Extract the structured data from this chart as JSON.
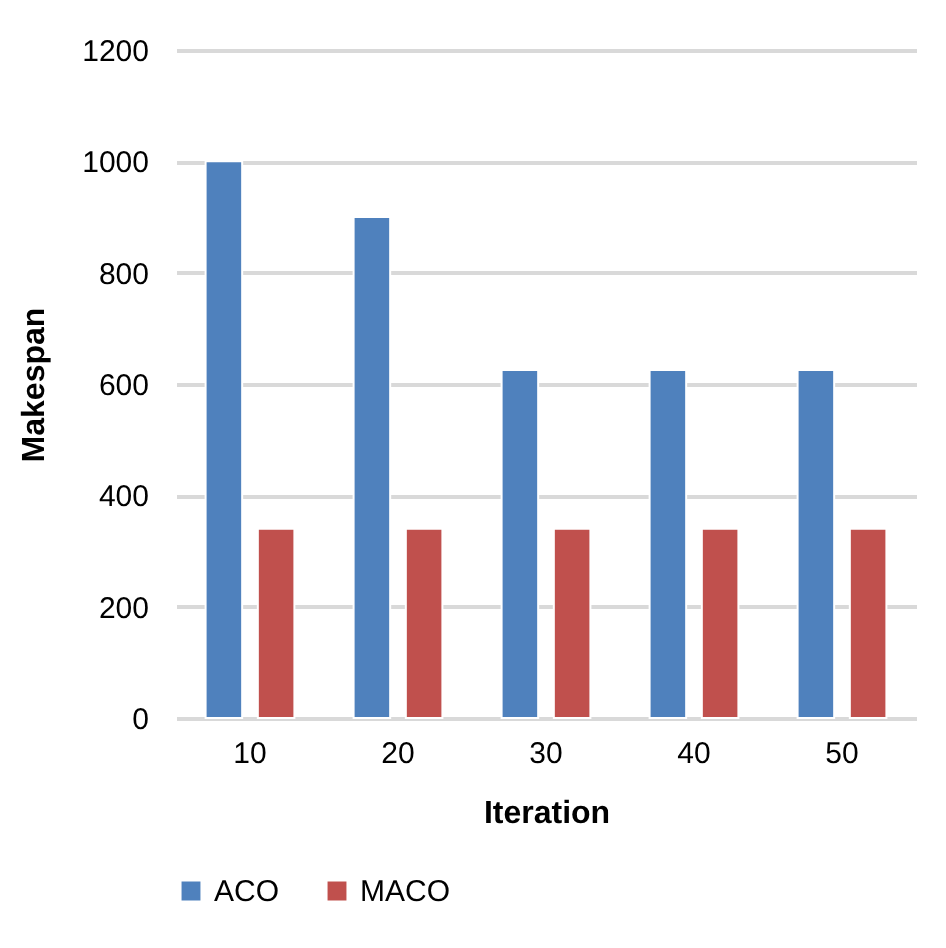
{
  "chart_data": {
    "type": "bar",
    "xlabel": "Iteration",
    "ylabel": "Makespan",
    "categories": [
      "10",
      "20",
      "30",
      "40",
      "50"
    ],
    "series": [
      {
        "name": "ACO",
        "color": "#4f81bd",
        "values": [
          1000,
          900,
          625,
          625,
          625
        ]
      },
      {
        "name": "MACO",
        "color": "#c0504d",
        "values": [
          340,
          340,
          340,
          340,
          340
        ]
      }
    ],
    "ylim": [
      0,
      1200
    ],
    "yticks": [
      0,
      200,
      400,
      600,
      800,
      1000,
      1200
    ],
    "grid": "y",
    "legend": "bottom"
  }
}
